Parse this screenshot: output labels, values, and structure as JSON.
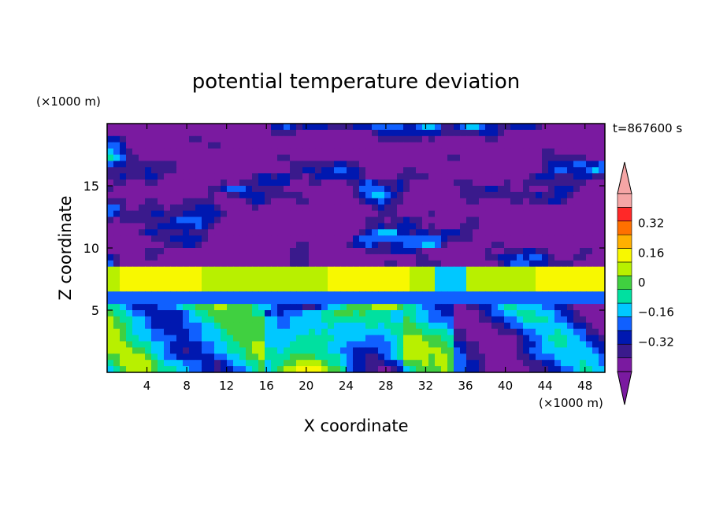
{
  "chart_data": {
    "type": "heatmap",
    "title": "potential temperature deviation",
    "xlabel": "X coordinate",
    "ylabel": "Z coordinate",
    "x_unit": "(×1000 m)",
    "y_unit": "(×1000 m)",
    "time_label": "t=867600 s",
    "xlim": [
      0,
      50
    ],
    "ylim": [
      0,
      20
    ],
    "x_ticks": [
      4,
      8,
      12,
      16,
      20,
      24,
      28,
      32,
      36,
      40,
      44,
      48
    ],
    "y_ticks": [
      5,
      10,
      15
    ],
    "colorbar": {
      "levels": [
        -0.48,
        -0.4,
        -0.32,
        -0.24,
        -0.16,
        -0.08,
        0,
        0.08,
        0.16,
        0.24,
        0.32,
        0.4,
        0.48
      ],
      "labels": [
        "0.32",
        "0.16",
        "0",
        "−0.16",
        "−0.32"
      ],
      "label_values": [
        0.32,
        0.16,
        0,
        -0.16,
        -0.32
      ],
      "colors": [
        "#7a1aa0",
        "#3a1a8c",
        "#0018b0",
        "#1060ff",
        "#00c8ff",
        "#00e0a0",
        "#40d040",
        "#b8f000",
        "#f8f800",
        "#ffb000",
        "#ff7000",
        "#ff2828",
        "#f5a5a5"
      ],
      "extend": "both"
    }
  },
  "icons": {
    "colorbar_top": "triangle-up-pink",
    "colorbar_bottom": "triangle-down-purple"
  }
}
